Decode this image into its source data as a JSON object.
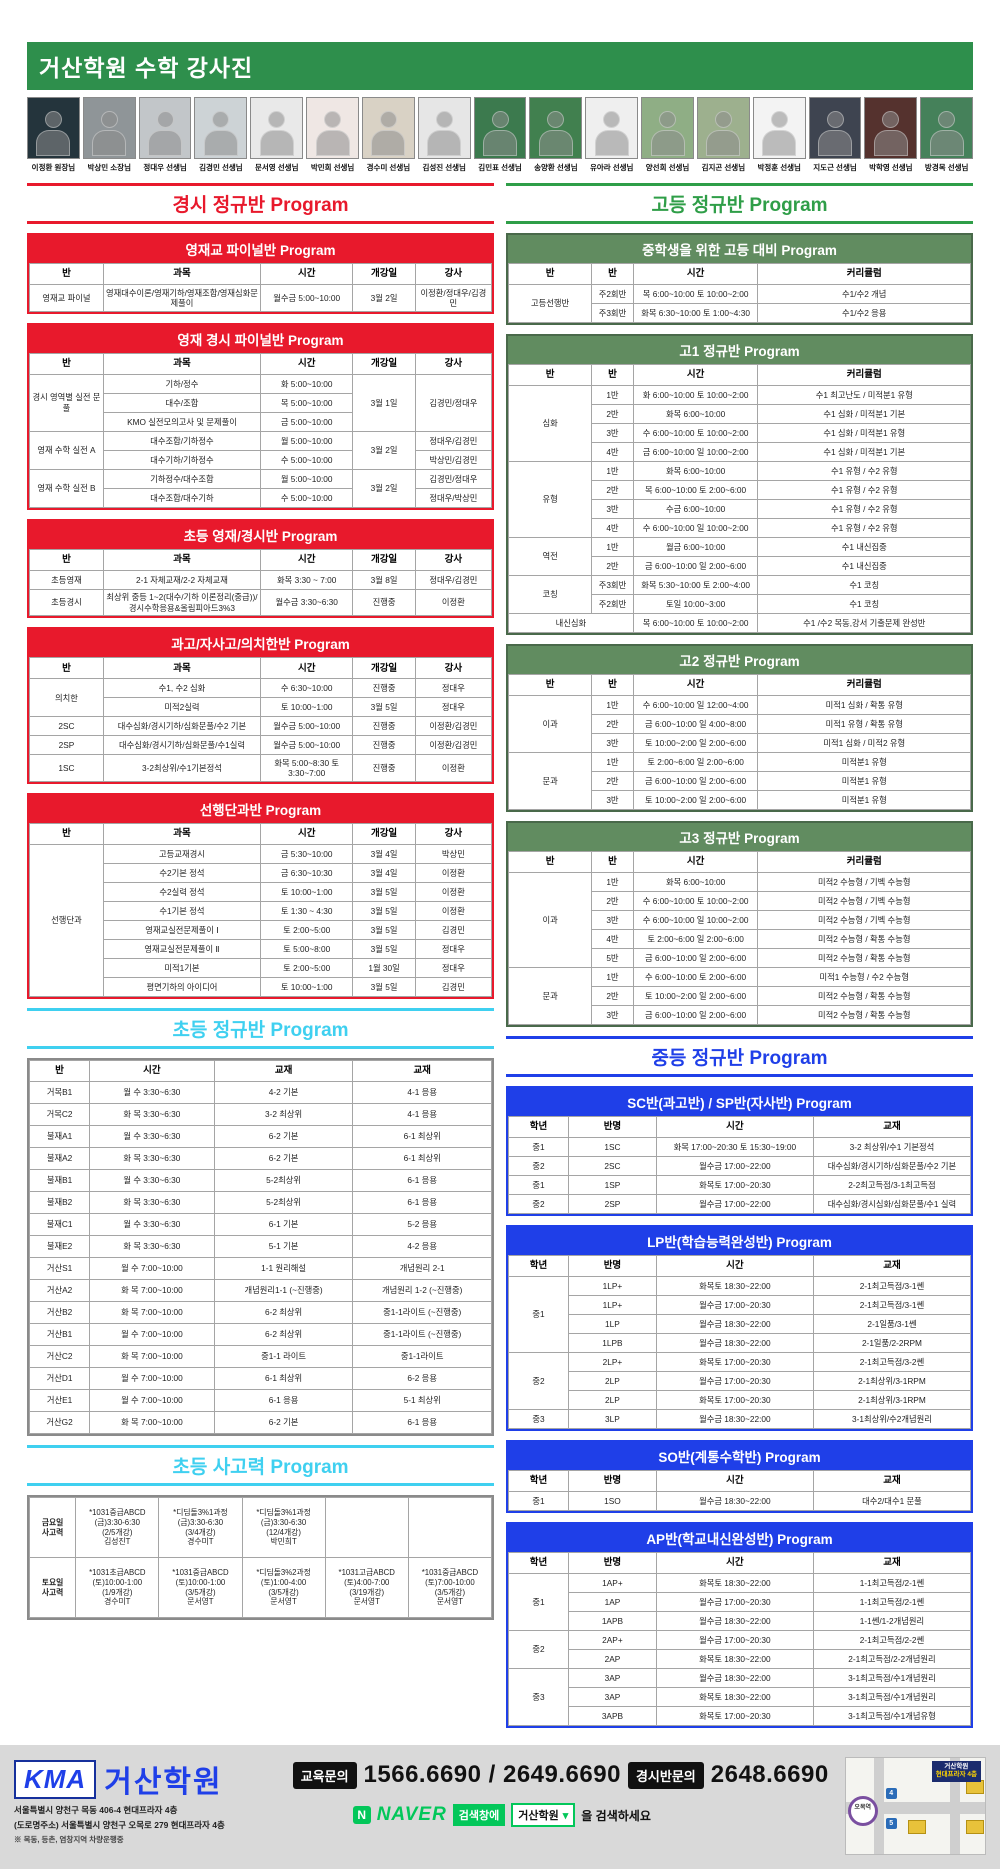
{
  "header": {
    "title": "거산학원 수학 강사진"
  },
  "colors": {
    "topbar_green": "#2e8f4c",
    "red": "#e8192c",
    "table_green": "#618c60",
    "title_green": "#2f9e48",
    "cyan": "#3fd0f0",
    "blue": "#1f3fe8",
    "naver_green": "#03c75a"
  },
  "instructors": [
    {
      "name": "이정환 원장님",
      "bg": "#24343c"
    },
    {
      "name": "박상민 소장님",
      "bg": "#8f9598"
    },
    {
      "name": "정대우 선생님",
      "bg": "#c2c6c9"
    },
    {
      "name": "김경민 선생님",
      "bg": "#cdd3d6"
    },
    {
      "name": "문서영 선생님",
      "bg": "#e9e9e9"
    },
    {
      "name": "박민희 선생님",
      "bg": "#efe7e4"
    },
    {
      "name": "경수미 선생님",
      "bg": "#d9d2c5"
    },
    {
      "name": "김성진 선생님",
      "bg": "#e6e6e6"
    },
    {
      "name": "김민표 선생님",
      "bg": "#3c7a4e"
    },
    {
      "name": "송양환 선생님",
      "bg": "#41804f"
    },
    {
      "name": "유아라 선생님",
      "bg": "#efefef"
    },
    {
      "name": "양선희 선생님",
      "bg": "#8fae85"
    },
    {
      "name": "김지곤 선생님",
      "bg": "#9db08e"
    },
    {
      "name": "박정훈 선생님",
      "bg": "#f3f3f3"
    },
    {
      "name": "지도근 선생님",
      "bg": "#3e4450"
    },
    {
      "name": "박학영 선생님",
      "bg": "#55322e"
    },
    {
      "name": "방경목 선생님",
      "bg": "#45815a"
    }
  ],
  "left": {
    "section_title": "경시 정규반 Program",
    "elementary_title": "초등 정규반 Program",
    "thinking_title": "초등 사고력 Program"
  },
  "right": {
    "section_title": "고등 정규반 Program",
    "middle_title": "중등 정규반 Program"
  },
  "tables": [
    {
      "mount": "left-red",
      "theme": "red",
      "name": "yeongjaegyo-final-table",
      "bar": "영재교 파이널반 Program",
      "cols": [
        "반",
        "과목",
        "시간",
        "개강일",
        "강사"
      ],
      "widths": [
        16,
        34,
        20,
        13.5,
        16.5
      ],
      "rows": [
        [
          "영재교 파이널",
          "영재대수이론/영재기하/영재조합/영재심화문제풀이",
          "월수금 5:00~10:00",
          "3월 2일",
          "이정환/정대우/김경민"
        ]
      ]
    },
    {
      "mount": "left-red",
      "theme": "red",
      "name": "yeongjae-gyeongsi-final-table",
      "bar": "영재 경시 파이널반 Program",
      "cols": [
        "반",
        "과목",
        "시간",
        "개강일",
        "강사"
      ],
      "widths": [
        16,
        34,
        20,
        13.5,
        16.5
      ],
      "rows": [
        [
          {
            "t": "경시 영역별 실전 문풀",
            "rs": 3
          },
          "기하/정수",
          "화 5:00~10:00",
          {
            "t": "3월 1일",
            "rs": 3
          },
          {
            "t": "김경민/정대우",
            "rs": 3
          }
        ],
        [
          "대수/조합",
          "목 5:00~10:00"
        ],
        [
          "KMO 실전모의고사 및 문제풀이",
          "금 5:00~10:00"
        ],
        [
          {
            "t": "영재 수학 실전 A",
            "rs": 2
          },
          "대수조합/기하정수",
          "월 5:00~10:00",
          {
            "t": "3월 2일",
            "rs": 2
          },
          "정대우/김경민"
        ],
        [
          "대수기하/기하정수",
          "수 5:00~10:00",
          "박상민/김경민"
        ],
        [
          {
            "t": "영재 수학 실전 B",
            "rs": 2
          },
          "기하정수/대수조합",
          "월 5:00~10:00",
          {
            "t": "3월 2일",
            "rs": 2
          },
          "김경민/정대우"
        ],
        [
          "대수조합/대수기하",
          "수 5:00~10:00",
          "정대우/박상민"
        ]
      ]
    },
    {
      "mount": "left-red",
      "theme": "red",
      "name": "elementary-gifted-table",
      "bar": "초등 영재/경시반 Program",
      "cols": [
        "반",
        "과목",
        "시간",
        "개강일",
        "강사"
      ],
      "widths": [
        16,
        34,
        20,
        13.5,
        16.5
      ],
      "rows": [
        [
          "초등영재",
          "2-1 자체교재/2-2 자체교재",
          "화목 3:30 ~ 7:00",
          "3월 8일",
          "정대우/김경민"
        ],
        [
          "초등경시",
          "최상위 중등 1~2(대수/기하 이론정리(중급))/경시수학응용&올림피아드3%3",
          "월수금 3:30~6:30",
          "진행중",
          "이정환"
        ]
      ]
    },
    {
      "mount": "left-red",
      "theme": "red",
      "name": "gwago-jasago-table",
      "bar": "과고/자사고/의치한반 Program",
      "cols": [
        "반",
        "과목",
        "시간",
        "개강일",
        "강사"
      ],
      "widths": [
        16,
        34,
        20,
        13.5,
        16.5
      ],
      "rows": [
        [
          {
            "t": "의치한",
            "rs": 2
          },
          "수1, 수2 심화",
          "수 6:30~10:00",
          "진행중",
          "정대우"
        ],
        [
          "미적2실력",
          "토 10:00~1:00",
          "3월 5일",
          "정대우"
        ],
        [
          "2SC",
          "대수심화/경시기하/심화문풀/수2 기본",
          "월수금 5:00~10:00",
          "진행중",
          "이정환/김경민"
        ],
        [
          "2SP",
          "대수심화/경시기하/심화문풀/수1실력",
          "월수금 5:00~10:00",
          "진행중",
          "이정환/김경민"
        ],
        [
          "1SC",
          "3-2최상위/수1기본정석",
          "화목 5:00~8:30 토 3:30~7:00",
          "진행중",
          "이정환"
        ]
      ]
    },
    {
      "mount": "left-red",
      "theme": "red",
      "name": "seonhaeng-danggwa-table",
      "bar": "선행단과반 Program",
      "cols": [
        "반",
        "과목",
        "시간",
        "개강일",
        "강사"
      ],
      "widths": [
        16,
        34,
        20,
        13.5,
        16.5
      ],
      "rows": [
        [
          {
            "t": "선행단과",
            "rs": 8
          },
          "고등교재경시",
          "금 5:30~10:00",
          "3월 4일",
          "박상민"
        ],
        [
          "수2기본 정석",
          "금 6:30~10:30",
          "3월 4일",
          "이정환"
        ],
        [
          "수2실력 정석",
          "토 10:00~1:00",
          "3월 5일",
          "이정환"
        ],
        [
          "수1기본 정석",
          "토 1:30 ~ 4:30",
          "3월 5일",
          "이정환"
        ],
        [
          "영재교실전문제풀이 Ⅰ",
          "토 2:00~5:00",
          "3월 5일",
          "김경민"
        ],
        [
          "영재교실전문제풀이 Ⅱ",
          "토 5:00~8:00",
          "3월 5일",
          "정대우"
        ],
        [
          "미적1기본",
          "토 2:00~5:00",
          "1월 30일",
          "정대우"
        ],
        [
          "평면기하의 아이디어",
          "토 10:00~1:00",
          "3월 5일",
          "김경민"
        ]
      ]
    },
    {
      "mount": "left-elem",
      "theme": "plain",
      "name": "elementary-regular-table",
      "cols": [
        "반",
        "시간",
        "교재",
        "교재"
      ],
      "widths": [
        13,
        27,
        30,
        30
      ],
      "rows": [
        [
          "거목B1",
          "월 수 3:30~6:30",
          "4-2 기본",
          "4-1 응용"
        ],
        [
          "거목C2",
          "화 목 3:30~6:30",
          "3-2 최상위",
          "4-1 응용"
        ],
        [
          "불재A1",
          "월 수 3:30~6:30",
          "6-2 기본",
          "6-1 최상위"
        ],
        [
          "불재A2",
          "화 목 3:30~6:30",
          "6-2 기본",
          "6-1 최상위"
        ],
        [
          "불재B1",
          "월 수 3:30~6:30",
          "5-2최상위",
          "6-1 응용"
        ],
        [
          "불재B2",
          "화 목 3:30~6:30",
          "5-2최상위",
          "6-1 응용"
        ],
        [
          "불재C1",
          "월 수 3:30~6:30",
          "6-1 기본",
          "5-2 응용"
        ],
        [
          "불재E2",
          "화 목 3:30~6:30",
          "5-1 기본",
          "4-2 응용"
        ],
        [
          "거산S1",
          "월 수 7:00~10:00",
          "1-1 원리해설",
          "개념원리 2-1"
        ],
        [
          "거산A2",
          "화 목 7:00~10:00",
          "개념원리1-1 (~진행중)",
          "개념원리 1-2 (~진행중)"
        ],
        [
          "거산B2",
          "화 목 7:00~10:00",
          "6-2 최상위",
          "중1-1라이트 (~진행중)"
        ],
        [
          "거산B1",
          "월 수 7:00~10:00",
          "6-2 최상위",
          "중1-1라이트 (~진행중)"
        ],
        [
          "거산C2",
          "화 목 7:00~10:00",
          "중1-1 라이트",
          "중1-1라이트"
        ],
        [
          "거산D1",
          "월 수 7:00~10:00",
          "6-1 최상위",
          "6-2 응용"
        ],
        [
          "거산E1",
          "월 수 7:00~10:00",
          "6-1 응용",
          "5-1 최상위"
        ],
        [
          "거산G2",
          "화 목 7:00~10:00",
          "6-2 기본",
          "6-1 응용"
        ]
      ]
    },
    {
      "mount": "left-think",
      "theme": "plain tall",
      "name": "elementary-thinking-table",
      "widths": [
        10,
        18,
        18,
        18,
        18,
        18
      ],
      "rows": [
        [
          {
            "lines": [
              "금요일",
              "사고력"
            ],
            "h": true
          },
          {
            "lines": [
              "*1031중급ABCD",
              "(금)3:30-6:30",
              "(2/5개강)",
              "김성진T"
            ]
          },
          {
            "lines": [
              "*디딤돌3%1과정",
              "(금)3:30-6:30",
              "(3/4개강)",
              "경수미T"
            ]
          },
          {
            "lines": [
              "*디딤돌3%1과정",
              "(금)3:30-6:30",
              "(12/4개강)",
              "박민희T"
            ]
          },
          "",
          ""
        ],
        [
          {
            "lines": [
              "토요일",
              "사고력"
            ],
            "h": true
          },
          {
            "lines": [
              "*1031초급ABCD",
              "(토)10:00-1:00",
              "(1/9개강)",
              "경수미T"
            ]
          },
          {
            "lines": [
              "*1031중급ABCD",
              "(토)10:00-1:00",
              "(3/5개강)",
              "문서영T"
            ]
          },
          {
            "lines": [
              "*디딤돌3%2과정",
              "(토)1:00-4:00",
              "(3/5개강)",
              "문서영T"
            ]
          },
          {
            "lines": [
              "*1031고급ABCD",
              "(토)4:00-7:00",
              "(3/19개강)",
              "문서영T"
            ]
          },
          {
            "lines": [
              "*1031중급ABCD",
              "(토)7:00-10:00",
              "(3/5개강)",
              "문서영T"
            ]
          }
        ]
      ]
    },
    {
      "mount": "right-high",
      "theme": "green",
      "name": "middle-to-high-prep-table",
      "bar": "중학생을 위한 고등 대비 Program",
      "cols": [
        "반",
        "반",
        "시간",
        "커리큘럼"
      ],
      "widths": [
        18,
        9,
        27,
        46
      ],
      "rows": [
        [
          {
            "t": "고등선행반",
            "rs": 2
          },
          "주2회반",
          "목 6:00~10:00 토 10:00~2:00",
          "수1/수2 개념"
        ],
        [
          "주3회반",
          "화목 6:30~10:00 토 1:00~4:30",
          "수1/수2 응용"
        ]
      ]
    },
    {
      "mount": "right-high",
      "theme": "green",
      "name": "high1-regular-table",
      "bar": "고1 정규반 Program",
      "cols": [
        "반",
        "반",
        "시간",
        "커리큘럼"
      ],
      "widths": [
        18,
        9,
        27,
        46
      ],
      "rows": [
        [
          {
            "t": "심화",
            "rs": 4
          },
          "1반",
          "화 6:00~10:00 토 10:00~2:00",
          "수1 최고난도 / 미적분1 유형"
        ],
        [
          "2반",
          "화목 6:00~10:00",
          "수1 심화 / 미적분1 기본"
        ],
        [
          "3반",
          "수 6:00~10:00 토 10:00~2:00",
          "수1 심화 / 미적분1 유형"
        ],
        [
          "4반",
          "금 6:00~10:00 일 10:00~2:00",
          "수1 심화 / 미적분1 기본"
        ],
        [
          {
            "t": "유형",
            "rs": 4
          },
          "1반",
          "화목 6:00~10:00",
          "수1 유형 / 수2 유형"
        ],
        [
          "2반",
          "목 6:00~10:00 토 2:00~6:00",
          "수1 유형 / 수2 유형"
        ],
        [
          "3반",
          "수금 6:00~10:00",
          "수1 유형 / 수2 유형"
        ],
        [
          "4반",
          "수 6:00~10:00 일 10:00~2:00",
          "수1 유형 / 수2 유형"
        ],
        [
          {
            "t": "역전",
            "rs": 2
          },
          "1반",
          "월금 6:00~10:00",
          "수1 내신집중"
        ],
        [
          "2반",
          "금 6:00~10:00 일 2:00~6:00",
          "수1 내신집중"
        ],
        [
          {
            "t": "코칭",
            "rs": 2
          },
          "주3회반",
          "화목 5:30~10:00 토 2:00~4:00",
          "수1 코칭"
        ],
        [
          "주2회반",
          "토일 10:00~3:00",
          "수1 코칭"
        ],
        [
          {
            "t": "내신심화",
            "cs": 2
          },
          "목 6:00~10:00 토 10:00~2:00",
          "수1 /수2 목동,강서 기출문제 완성반"
        ]
      ]
    },
    {
      "mount": "right-high",
      "theme": "green",
      "name": "high2-regular-table",
      "bar": "고2 정규반 Program",
      "cols": [
        "반",
        "반",
        "시간",
        "커리큘럼"
      ],
      "widths": [
        18,
        9,
        27,
        46
      ],
      "rows": [
        [
          {
            "t": "이과",
            "rs": 3
          },
          "1반",
          "수 6:00~10:00 일 12:00~4:00",
          "미적1 심화 / 확통 유형"
        ],
        [
          "2반",
          "금 6:00~10:00 일 4:00~8:00",
          "미적1 유형 / 확통 유형"
        ],
        [
          "3반",
          "토 10:00~2:00 일 2:00~6:00",
          "미적1 심화 / 미적2 유형"
        ],
        [
          {
            "t": "문과",
            "rs": 3
          },
          "1반",
          "토 2:00~6:00 일 2:00~6:00",
          "미적분1 유형"
        ],
        [
          "2반",
          "금 6:00~10:00 일 2:00~6:00",
          "미적분1 유형"
        ],
        [
          "3반",
          "토 10:00~2:00 일 2:00~6:00",
          "미적분1 유형"
        ]
      ]
    },
    {
      "mount": "right-high",
      "theme": "green",
      "name": "high3-regular-table",
      "bar": "고3 정규반 Program",
      "cols": [
        "반",
        "반",
        "시간",
        "커리큘럼"
      ],
      "widths": [
        18,
        9,
        27,
        46
      ],
      "rows": [
        [
          {
            "t": "이과",
            "rs": 5
          },
          "1반",
          "화목 6:00~10:00",
          "미적2 수능형 / 기벡 수능형"
        ],
        [
          "2반",
          "수 6:00~10:00 토 10:00~2:00",
          "미적2 수능형 / 기벡 수능형"
        ],
        [
          "3반",
          "수 6:00~10:00 일 10:00~2:00",
          "미적2 수능형 / 기벡 수능형"
        ],
        [
          "4반",
          "토 2:00~6:00 일 2:00~6:00",
          "미적2 수능형 / 확통 수능형"
        ],
        [
          "5반",
          "금 6:00~10:00 일 2:00~6:00",
          "미적2 수능형 / 확통 수능형"
        ],
        [
          {
            "t": "문과",
            "rs": 3
          },
          "1반",
          "수 6:00~10:00 토 2:00~6:00",
          "미적1 수능형 / 수2 수능형"
        ],
        [
          "2반",
          "토 10:00~2:00 일 2:00~6:00",
          "미적2 수능형 / 확통 수능형"
        ],
        [
          "3반",
          "금 6:00~10:00 일 2:00~6:00",
          "미적2 수능형 / 확통 수능형"
        ]
      ]
    },
    {
      "mount": "right-mid",
      "theme": "blue",
      "name": "sc-sp-table",
      "bar": "SC반(과고반) / SP반(자사반) Program",
      "cols": [
        "학년",
        "반명",
        "시간",
        "교재"
      ],
      "widths": [
        13,
        19,
        34,
        34
      ],
      "rows": [
        [
          "중1",
          "1SC",
          "화목 17:00~20:30 토 15:30~19:00",
          "3-2 최상위/수1 기본정석"
        ],
        [
          "중2",
          "2SC",
          "월수금 17:00~22:00",
          "대수심화/경시기하/심화문풀/수2 기본"
        ],
        [
          "중1",
          "1SP",
          "화목토 17:00~20:30",
          "2-2최고득점/3-1최고득점"
        ],
        [
          "중2",
          "2SP",
          "월수금 17:00~22:00",
          "대수심화/경시심화/심화문풀/수1 실력"
        ]
      ]
    },
    {
      "mount": "right-mid",
      "theme": "blue",
      "name": "lp-table",
      "bar": "LP반(학습능력완성반) Program",
      "cols": [
        "학년",
        "반명",
        "시간",
        "교재"
      ],
      "widths": [
        13,
        19,
        34,
        34
      ],
      "rows": [
        [
          {
            "t": "중1",
            "rs": 4
          },
          "1LP+",
          "화목토 18:30~22:00",
          "2-1최고득점/3-1쎈"
        ],
        [
          "1LP+",
          "월수금 17:00~20:30",
          "2-1최고득점/3-1쎈"
        ],
        [
          "1LP",
          "월수금 18:30~22:00",
          "2-1일품/3-1쎈"
        ],
        [
          "1LPB",
          "월수금 18:30~22:00",
          "2-1일품/2-2RPM"
        ],
        [
          {
            "t": "중2",
            "rs": 3
          },
          "2LP+",
          "화목토 17:00~20:30",
          "2-1최고득점/3-2쎈"
        ],
        [
          "2LP",
          "월수금 17:00~20:30",
          "2-1최상위/3-1RPM"
        ],
        [
          "2LP",
          "화목토 17:00~20:30",
          "2-1최상위/3-1RPM"
        ],
        [
          "중3",
          "3LP",
          "월수금 18:30~22:00",
          "3-1최상위/수2개념원리"
        ]
      ]
    },
    {
      "mount": "right-mid",
      "theme": "blue",
      "name": "so-table",
      "bar": "SO반(계통수학반) Program",
      "cols": [
        "학년",
        "반명",
        "시간",
        "교재"
      ],
      "widths": [
        13,
        19,
        34,
        34
      ],
      "rows": [
        [
          "중1",
          "1SO",
          "월수금 18:30~22:00",
          "대수2/대수1 문풀"
        ]
      ]
    },
    {
      "mount": "right-mid",
      "theme": "blue",
      "name": "ap-table",
      "bar": "AP반(학교내신완성반) Program",
      "cols": [
        "학년",
        "반명",
        "시간",
        "교재"
      ],
      "widths": [
        13,
        19,
        34,
        34
      ],
      "rows": [
        [
          {
            "t": "중1",
            "rs": 3
          },
          "1AP+",
          "화목토 18:30~22:00",
          "1-1최고득점/2-1쎈"
        ],
        [
          "1AP",
          "월수금 17:00~20:30",
          "1-1최고득점/2-1쎈"
        ],
        [
          "1APB",
          "월수금 18:30~22:00",
          "1-1쎈/1-2개념원리"
        ],
        [
          {
            "t": "중2",
            "rs": 2
          },
          "2AP+",
          "월수금 17:00~20:30",
          "2-1최고득점/2-2쎈"
        ],
        [
          "2AP",
          "화목토 18:30~22:00",
          "2-1최고득점/2-2개념원리"
        ],
        [
          {
            "t": "중3",
            "rs": 3
          },
          "3AP",
          "월수금 18:30~22:00",
          "3-1최고득점/수1개념원리"
        ],
        [
          "3AP",
          "화목토 18:30~22:00",
          "3-1최고득점/수1개념원리"
        ],
        [
          "3APB",
          "화목토 17:00~20:30",
          "3-1최고득점/수1개념유형"
        ]
      ]
    }
  ],
  "footer": {
    "logo_mark": "KMA",
    "academy_name": "거산학원",
    "address1": "서울특별시 양천구 목동 406-4 현대프라자 4층",
    "address2": "(도로명주소) 서울특별시 양천구 오목로 279 현대프라자 4층",
    "address_note": "※ 목동, 등촌, 염창지역 차량운행중",
    "edu_label": "교육문의",
    "edu_phone": "1566.6690 / 2649.6690",
    "contest_label": "경시반문의",
    "contest_phone": "2648.6690",
    "naver_icon": "N",
    "naver": "NAVER",
    "search_label": "검색창에",
    "search_term": "거산학원",
    "search_arrow": "▾",
    "search_suffix": "을 검색하세요",
    "map_callout1": "거산학원",
    "map_callout2": "현대프라자 4층",
    "map_station": "오목역",
    "map_exit4": "4",
    "map_exit5": "5"
  }
}
